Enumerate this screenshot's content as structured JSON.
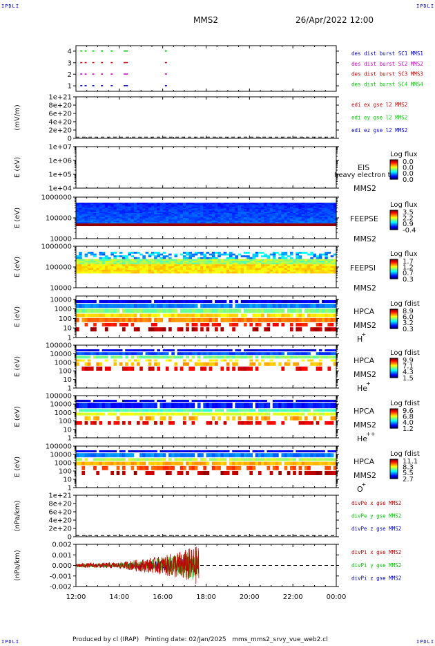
{
  "header": {
    "corner_tl": "IPDLI",
    "corner_tr": "IPDLI",
    "corner_bl": "IPDLI",
    "corner_br": "IPDLI",
    "title": "MMS2",
    "datetime": "26/Apr/2022 12:00"
  },
  "footer": {
    "credit": "Produced by cl (IRAP)   Printing date: 02/Jan/2025   mms_mms2_srvy_vue_web2.cl"
  },
  "chart_data": {
    "type": "multi-panel time series",
    "x_axis": {
      "range": [
        "12:00",
        "00:00"
      ],
      "tick_labels": [
        "12:00",
        "14:00",
        "16:00",
        "18:00",
        "20:00",
        "22:00",
        "00:00"
      ]
    },
    "panels": [
      {
        "id": "burst",
        "type": "scatter",
        "ylabel": "",
        "ylim": [
          0.5,
          4.5
        ],
        "y_ticks": [
          "1",
          "2",
          "3",
          "4"
        ],
        "legend": [
          {
            "text": "des dist burst SC1 MMS1",
            "color": "#0000cc"
          },
          {
            "text": "des dist burst SC2 MMS2",
            "color": "#cc00cc"
          },
          {
            "text": "des dist burst SC3 MMS3",
            "color": "#cc0000"
          },
          {
            "text": "des dist burst SC4 MMS4",
            "color": "#00cc00"
          }
        ],
        "series": [
          {
            "name": "des dist burst SC4 MMS4",
            "color": "#00cc00",
            "level": 4,
            "times_h": [
              12.2,
              12.4,
              12.75,
              13.15,
              13.6,
              14.2,
              14.3,
              16.1
            ]
          },
          {
            "name": "des dist burst SC3 MMS3",
            "color": "#cc0000",
            "level": 3,
            "times_h": [
              12.2,
              12.4,
              12.75,
              13.15,
              13.6,
              14.2,
              14.3,
              16.1
            ]
          },
          {
            "name": "des dist burst SC2 MMS2",
            "color": "#cc00cc",
            "level": 2,
            "times_h": [
              12.2,
              12.4,
              12.75,
              13.15,
              13.6,
              14.2,
              14.3,
              16.1
            ]
          },
          {
            "name": "des dist burst SC1 MMS1",
            "color": "#0000cc",
            "level": 1,
            "times_h": [
              12.2,
              12.4,
              12.75,
              13.15,
              13.6,
              14.2,
              14.3,
              16.1
            ]
          }
        ]
      },
      {
        "id": "edi",
        "type": "line",
        "ylabel": "(mV/m)",
        "y_ticks": [
          "0",
          "2e+20",
          "4e+20",
          "6e+20",
          "8e+20",
          "1e+21"
        ],
        "ylim": [
          0,
          1e+21
        ],
        "legend": [
          {
            "text": "edi ex gse l2 MMS2",
            "color": "#cc0000"
          },
          {
            "text": "edi ey gse l2 MMS2",
            "color": "#00cc00"
          },
          {
            "text": "edi ez gse l2 MMS2",
            "color": "#0000cc"
          }
        ],
        "zero_line": true
      },
      {
        "id": "eis",
        "type": "heatmap",
        "ylabel": "E (eV)",
        "y_scale": "log",
        "y_ticks": [
          "1e+04",
          "1e+05",
          "1e+06",
          "1e+07"
        ],
        "ylim": [
          10000.0,
          10000000.0
        ],
        "labels": [
          "EIS",
          "heavy electron to",
          "MMS2"
        ],
        "colorbar": {
          "title": "Log flux",
          "ticks": [
            "0.0",
            "0.0",
            "0.0",
            "0.0"
          ]
        }
      },
      {
        "id": "feepse",
        "type": "heatmap",
        "ylabel": "E (eV)",
        "y_scale": "log",
        "y_ticks": [
          "10000",
          "100000",
          "1000000"
        ],
        "ylim": [
          10000,
          1000000
        ],
        "labels": [
          "FEEPSE",
          "MMS2"
        ],
        "colorbar": {
          "title": "Log flux",
          "ticks": [
            "3.5",
            "2.2",
            "0.9",
            "-0.4"
          ]
        }
      },
      {
        "id": "feepsi",
        "type": "heatmap",
        "ylabel": "E (eV)",
        "y_scale": "log",
        "y_ticks": [
          "10000",
          "100000",
          "1000000"
        ],
        "ylim": [
          10000,
          1000000
        ],
        "labels": [
          "FEEPSI",
          "MMS2"
        ],
        "colorbar": {
          "title": "Log flux",
          "ticks": [
            "1.7",
            "1.2",
            "0.7",
            "0.3"
          ]
        }
      },
      {
        "id": "hpca_h",
        "type": "heatmap",
        "ylabel": "E (eV)",
        "y_scale": "log",
        "y_ticks": [
          "1",
          "10",
          "100",
          "1000",
          "10000"
        ],
        "ylim": [
          1,
          30000
        ],
        "labels": [
          "HPCA",
          "MMS2",
          "H",
          "+"
        ],
        "colorbar": {
          "title": "Log fdist",
          "ticks": [
            "8.9",
            "6.0",
            "3.2",
            "0.3"
          ]
        }
      },
      {
        "id": "hpca_he",
        "type": "heatmap",
        "ylabel": "E (eV)",
        "y_scale": "log",
        "y_ticks": [
          "1",
          "10",
          "100",
          "1000",
          "10000",
          "100000"
        ],
        "ylim": [
          1,
          100000
        ],
        "labels": [
          "HPCA",
          "MMS2",
          "He",
          "+"
        ],
        "colorbar": {
          "title": "Log fdist",
          "ticks": [
            "9.9",
            "7.1",
            "4.3",
            "1.5"
          ]
        }
      },
      {
        "id": "hpca_hepp",
        "type": "heatmap",
        "ylabel": "E (eV)",
        "y_scale": "log",
        "y_ticks": [
          "1",
          "10",
          "100",
          "1000",
          "10000",
          "100000"
        ],
        "ylim": [
          1,
          100000
        ],
        "labels": [
          "HPCA",
          "MMS2",
          "He",
          "++"
        ],
        "colorbar": {
          "title": "Log fdist",
          "ticks": [
            "9.6",
            "6.8",
            "4.0",
            "1.2"
          ]
        }
      },
      {
        "id": "hpca_o",
        "type": "heatmap",
        "ylabel": "E (eV)",
        "y_scale": "log",
        "y_ticks": [
          "1",
          "10",
          "100",
          "1000",
          "10000",
          "100000"
        ],
        "ylim": [
          1,
          100000
        ],
        "labels": [
          "HPCA",
          "MMS2",
          "O",
          "+"
        ],
        "colorbar": {
          "title": "Log fdist",
          "ticks": [
            "11.1",
            "8.3",
            "5.5",
            "2.7"
          ]
        }
      },
      {
        "id": "divpe",
        "type": "line",
        "ylabel": "(nPa/km)",
        "y_ticks": [
          "0",
          "2e+20",
          "4e+20",
          "6e+20",
          "8e+20",
          "1e+21"
        ],
        "ylim": [
          0,
          1e+21
        ],
        "legend": [
          {
            "text": "divPe x gse MMS2",
            "color": "#cc0000"
          },
          {
            "text": "divPe y gse MMS2",
            "color": "#00cc00"
          },
          {
            "text": "divPe z gse MMS2",
            "color": "#0000cc"
          }
        ],
        "zero_line": true
      },
      {
        "id": "divpi",
        "type": "line",
        "ylabel": "(nPa/km)",
        "y_ticks": [
          "-0.002",
          "-0.001",
          "0.000",
          "0.001",
          "0.002"
        ],
        "ylim": [
          -0.002,
          0.002
        ],
        "legend": [
          {
            "text": "divPi x gse MMS2",
            "color": "#cc0000"
          },
          {
            "text": "divPi y gse MMS2",
            "color": "#00cc00"
          },
          {
            "text": "divPi z gse MMS2",
            "color": "#0000cc"
          }
        ],
        "zero_line": true,
        "data_end_time": "17:40",
        "amplitude_envelope": [
          {
            "t": "12:00",
            "amp": 0.0002
          },
          {
            "t": "14:00",
            "amp": 0.0003
          },
          {
            "t": "15:00",
            "amp": 0.0006
          },
          {
            "t": "16:00",
            "amp": 0.0009
          },
          {
            "t": "17:00",
            "amp": 0.0015
          },
          {
            "t": "17:40",
            "amp": 0.0019
          }
        ]
      }
    ]
  }
}
